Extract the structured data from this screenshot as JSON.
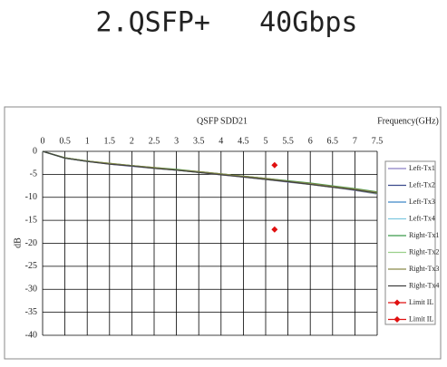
{
  "slide": {
    "title": "2.QSFP+   40Gbps"
  },
  "chart_data": {
    "type": "line",
    "title": "QSFP SDD21",
    "x_label": "Frequency(GHz)",
    "y_label": "dB",
    "xlim": [
      0,
      7.5
    ],
    "ylim": [
      -40,
      0
    ],
    "xticks": [
      0,
      0.5,
      1,
      1.5,
      2,
      2.5,
      3,
      3.5,
      4,
      4.5,
      5,
      5.5,
      6,
      6.5,
      7,
      7.5
    ],
    "yticks": [
      0,
      -5,
      -10,
      -15,
      -20,
      -25,
      -30,
      -35,
      -40
    ],
    "grid": true,
    "x": [
      0,
      0.5,
      1,
      1.5,
      2,
      2.5,
      3,
      3.5,
      4,
      4.5,
      5,
      5.5,
      6,
      6.5,
      7,
      7.5
    ],
    "series": [
      {
        "name": "Left-Tx1",
        "color": "#8a7fc4",
        "values": [
          0,
          -1.5,
          -2.2,
          -2.8,
          -3.3,
          -3.7,
          -4.1,
          -4.6,
          -5.1,
          -5.6,
          -6.1,
          -6.7,
          -7.2,
          -7.8,
          -8.5,
          -9.3
        ]
      },
      {
        "name": "Left-Tx2",
        "color": "#3a4a8c",
        "values": [
          0,
          -1.4,
          -2.1,
          -2.7,
          -3.2,
          -3.6,
          -4.0,
          -4.5,
          -5.0,
          -5.5,
          -6.0,
          -6.5,
          -7.1,
          -7.7,
          -8.3,
          -9.0
        ]
      },
      {
        "name": "Left-Tx3",
        "color": "#3f86c8",
        "values": [
          0,
          -1.5,
          -2.2,
          -2.7,
          -3.2,
          -3.6,
          -4.1,
          -4.5,
          -5.0,
          -5.5,
          -6.0,
          -6.6,
          -7.1,
          -7.7,
          -8.4,
          -9.1
        ]
      },
      {
        "name": "Left-Tx4",
        "color": "#7fc8e0",
        "values": [
          0,
          -1.4,
          -2.1,
          -2.7,
          -3.1,
          -3.6,
          -4.0,
          -4.5,
          -4.9,
          -5.4,
          -5.9,
          -6.5,
          -7.0,
          -7.6,
          -8.2,
          -8.9
        ]
      },
      {
        "name": "Right-Tx1",
        "color": "#3a9a4a",
        "values": [
          0,
          -1.4,
          -2.1,
          -2.6,
          -3.1,
          -3.5,
          -3.9,
          -4.4,
          -4.9,
          -5.4,
          -5.9,
          -6.4,
          -6.9,
          -7.5,
          -8.1,
          -8.8
        ]
      },
      {
        "name": "Right-Tx2",
        "color": "#9ad08a",
        "values": [
          0,
          -1.5,
          -2.2,
          -2.7,
          -3.2,
          -3.7,
          -4.1,
          -4.6,
          -5.0,
          -5.5,
          -6.1,
          -6.6,
          -7.2,
          -7.8,
          -8.4,
          -9.2
        ]
      },
      {
        "name": "Right-Tx3",
        "color": "#8a8a4a",
        "values": [
          0,
          -1.4,
          -2.1,
          -2.6,
          -3.1,
          -3.5,
          -4.0,
          -4.4,
          -4.9,
          -5.4,
          -5.9,
          -6.5,
          -7.0,
          -7.6,
          -8.2,
          -8.9
        ]
      },
      {
        "name": "Right-Tx4",
        "color": "#404040",
        "values": [
          0,
          -1.5,
          -2.2,
          -2.8,
          -3.2,
          -3.7,
          -4.1,
          -4.6,
          -5.1,
          -5.6,
          -6.1,
          -6.6,
          -7.2,
          -7.8,
          -8.4,
          -9.1
        ]
      },
      {
        "name": "Limit IL",
        "color": "#e01010",
        "marker": "diamond",
        "x": [
          5.2
        ],
        "values": [
          -3
        ]
      },
      {
        "name": "Limit IL",
        "color": "#e01010",
        "marker": "diamond",
        "x": [
          5.2
        ],
        "values": [
          -17
        ]
      }
    ]
  }
}
